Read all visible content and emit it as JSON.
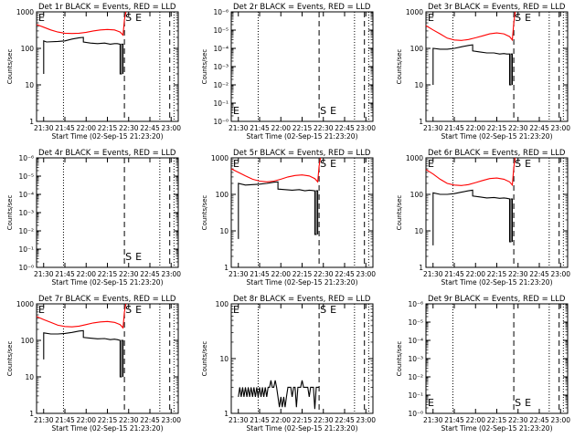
{
  "figure": {
    "x_title": "Start Time (02-Sep-15 21:23:20)",
    "y_title": "Counts/sec"
  },
  "colors": {
    "events": "#000000",
    "lld": "#ff0000",
    "axis": "#000000"
  },
  "x_ticks": [
    "21:30",
    "21:45",
    "22:00",
    "22:15",
    "22:30",
    "22:45",
    "23:00"
  ],
  "marker_labels": {
    "start": "S",
    "end": "E"
  },
  "chart_data": [
    {
      "type": "line",
      "title": "Det 1r BLACK = Events, RED = LLD",
      "y_scale": "log",
      "ylim": [
        1,
        1000
      ],
      "y_ticks": [
        "1",
        "10",
        "100",
        "1000"
      ],
      "xlim_min": [
        -5,
        95
      ],
      "markers": {
        "dotted": [
          14,
          82,
          92
        ],
        "dashed": [
          57,
          89
        ]
      },
      "edge_labels": {
        "left": "E",
        "start": "S",
        "end": "E"
      },
      "series": [
        {
          "name": "LLD",
          "color": "#ff0000",
          "x": [
            -5,
            0,
            5,
            10,
            15,
            20,
            25,
            30,
            35,
            40,
            45,
            50,
            54,
            56,
            57,
            58
          ],
          "y": [
            450,
            380,
            320,
            280,
            260,
            255,
            260,
            275,
            300,
            320,
            330,
            320,
            280,
            230,
            600,
            1000
          ]
        },
        {
          "name": "Events",
          "color": "#000000",
          "x": [
            0,
            0,
            2,
            10,
            15,
            20,
            25,
            28,
            28,
            33,
            38,
            43,
            47,
            50,
            52,
            54,
            54,
            55,
            55,
            56,
            56
          ],
          "y": [
            20,
            160,
            150,
            155,
            160,
            180,
            195,
            200,
            150,
            140,
            135,
            140,
            130,
            135,
            135,
            130,
            20,
            20,
            130,
            130,
            20
          ]
        }
      ]
    },
    {
      "type": "line",
      "title": "Det 2r BLACK = Events, RED = LLD",
      "y_scale": "log",
      "ylim": [
        1e-06,
        1
      ],
      "y_ticks": [
        "10⁻⁰",
        "10⁻¹",
        "10⁻²",
        "10⁻³",
        "10⁻⁴",
        "10⁻⁵",
        "10⁻⁶"
      ],
      "xlim_min": [
        -5,
        95
      ],
      "markers": {
        "dotted": [
          14,
          82,
          92
        ],
        "dashed": [
          57,
          89
        ]
      },
      "edge_labels": {
        "left": "E",
        "start": "S",
        "end": "E"
      },
      "series": []
    },
    {
      "type": "line",
      "title": "Det 3r BLACK = Events, RED = LLD",
      "y_scale": "log",
      "ylim": [
        1,
        1000
      ],
      "y_ticks": [
        "1",
        "10",
        "100",
        "1000"
      ],
      "xlim_min": [
        -5,
        95
      ],
      "markers": {
        "dotted": [
          14,
          82,
          92
        ],
        "dashed": [
          57,
          89
        ]
      },
      "edge_labels": {
        "left": "E",
        "start": "S",
        "end": "E"
      },
      "series": [
        {
          "name": "LLD",
          "color": "#ff0000",
          "x": [
            -5,
            0,
            5,
            10,
            15,
            20,
            25,
            30,
            35,
            40,
            45,
            50,
            54,
            56,
            57,
            58
          ],
          "y": [
            420,
            320,
            250,
            190,
            170,
            165,
            175,
            195,
            220,
            250,
            265,
            250,
            210,
            170,
            500,
            1000
          ]
        },
        {
          "name": "Events",
          "color": "#000000",
          "x": [
            0,
            0,
            5,
            10,
            15,
            20,
            25,
            28,
            28,
            33,
            38,
            43,
            47,
            50,
            52,
            54,
            54,
            55,
            55,
            56,
            56
          ],
          "y": [
            10,
            100,
            95,
            95,
            100,
            110,
            120,
            125,
            85,
            80,
            75,
            75,
            70,
            72,
            70,
            70,
            10,
            10,
            70,
            70,
            10
          ]
        }
      ]
    },
    {
      "type": "line",
      "title": "Det 4r BLACK = Events, RED = LLD",
      "y_scale": "log",
      "ylim": [
        1e-06,
        1
      ],
      "y_ticks": [
        "10⁻⁰",
        "10⁻¹",
        "10⁻²",
        "10⁻³",
        "10⁻⁴",
        "10⁻⁵",
        "10⁻⁶"
      ],
      "xlim_min": [
        -5,
        95
      ],
      "markers": {
        "dotted": [
          14,
          82,
          92
        ],
        "dashed": [
          57,
          89
        ]
      },
      "edge_labels": {
        "left": "",
        "start": "S",
        "end": "E"
      },
      "series": []
    },
    {
      "type": "line",
      "title": "Det 5r BLACK = Events, RED = LLD",
      "y_scale": "log",
      "ylim": [
        1,
        1000
      ],
      "y_ticks": [
        "1",
        "10",
        "100",
        "1000"
      ],
      "xlim_min": [
        -5,
        95
      ],
      "markers": {
        "dotted": [
          14,
          82,
          92
        ],
        "dashed": [
          57,
          89
        ]
      },
      "edge_labels": {
        "left": "E",
        "start": "S",
        "end": "E"
      },
      "series": [
        {
          "name": "LLD",
          "color": "#ff0000",
          "x": [
            -5,
            0,
            5,
            10,
            15,
            20,
            25,
            30,
            35,
            40,
            45,
            50,
            54,
            56,
            57,
            58
          ],
          "y": [
            500,
            400,
            320,
            260,
            230,
            220,
            230,
            260,
            300,
            330,
            340,
            320,
            270,
            220,
            600,
            1000
          ]
        },
        {
          "name": "Events",
          "color": "#000000",
          "x": [
            0,
            0,
            5,
            10,
            15,
            20,
            25,
            28,
            28,
            33,
            38,
            43,
            47,
            50,
            52,
            54,
            54,
            55,
            55,
            56,
            56
          ],
          "y": [
            6,
            200,
            180,
            185,
            190,
            200,
            215,
            220,
            140,
            135,
            130,
            135,
            125,
            130,
            128,
            125,
            8,
            8,
            125,
            125,
            8
          ]
        }
      ]
    },
    {
      "type": "line",
      "title": "Det 6r BLACK = Events, RED = LLD",
      "y_scale": "log",
      "ylim": [
        1,
        1000
      ],
      "y_ticks": [
        "1",
        "10",
        "100",
        "1000"
      ],
      "xlim_min": [
        -5,
        95
      ],
      "markers": {
        "dotted": [
          14,
          82,
          92
        ],
        "dashed": [
          57,
          89
        ]
      },
      "edge_labels": {
        "left": "E",
        "start": "S",
        "end": "E"
      },
      "series": [
        {
          "name": "LLD",
          "color": "#ff0000",
          "x": [
            -5,
            0,
            5,
            10,
            15,
            20,
            25,
            30,
            35,
            40,
            45,
            50,
            54,
            56,
            57,
            58
          ],
          "y": [
            480,
            360,
            260,
            200,
            180,
            175,
            185,
            210,
            240,
            270,
            280,
            260,
            220,
            180,
            550,
            1000
          ]
        },
        {
          "name": "Events",
          "color": "#000000",
          "x": [
            0,
            0,
            5,
            10,
            15,
            20,
            25,
            28,
            28,
            33,
            38,
            43,
            47,
            50,
            52,
            54,
            54,
            55,
            55,
            56,
            56
          ],
          "y": [
            4,
            110,
            100,
            100,
            105,
            115,
            125,
            130,
            90,
            85,
            80,
            82,
            78,
            80,
            78,
            75,
            5,
            5,
            75,
            75,
            5
          ]
        }
      ]
    },
    {
      "type": "line",
      "title": "Det 7r BLACK = Events, RED = LLD",
      "y_scale": "log",
      "ylim": [
        1,
        1000
      ],
      "y_ticks": [
        "1",
        "10",
        "100",
        "1000"
      ],
      "xlim_min": [
        -5,
        95
      ],
      "markers": {
        "dotted": [
          14,
          82,
          92
        ],
        "dashed": [
          57,
          89
        ]
      },
      "edge_labels": {
        "left": "E",
        "start": "S",
        "end": "E"
      },
      "series": [
        {
          "name": "LLD",
          "color": "#ff0000",
          "x": [
            -5,
            0,
            5,
            10,
            15,
            20,
            25,
            30,
            35,
            40,
            45,
            50,
            54,
            56,
            57,
            58
          ],
          "y": [
            450,
            370,
            310,
            260,
            240,
            235,
            245,
            270,
            300,
            320,
            330,
            310,
            270,
            220,
            600,
            1000
          ]
        },
        {
          "name": "Events",
          "color": "#000000",
          "x": [
            0,
            0,
            5,
            10,
            15,
            20,
            25,
            28,
            28,
            33,
            38,
            43,
            47,
            50,
            52,
            54,
            54,
            55,
            55,
            56,
            56
          ],
          "y": [
            30,
            160,
            150,
            150,
            155,
            165,
            180,
            185,
            120,
            115,
            110,
            112,
            105,
            108,
            105,
            100,
            10,
            10,
            100,
            100,
            10
          ]
        }
      ]
    },
    {
      "type": "line",
      "title": "Det 8r BLACK = Events, RED = LLD",
      "y_scale": "log",
      "ylim": [
        1,
        100
      ],
      "y_ticks": [
        "1",
        "10",
        "100"
      ],
      "xlim_min": [
        -5,
        95
      ],
      "markers": {
        "dotted": [
          14,
          82,
          92
        ],
        "dashed": [
          57,
          89
        ]
      },
      "edge_labels": {
        "left": "E",
        "start": "S",
        "end": "E"
      },
      "series": [
        {
          "name": "Events",
          "color": "#000000",
          "x": [
            0,
            1,
            2,
            3,
            4,
            5,
            6,
            7,
            8,
            9,
            10,
            11,
            12,
            13,
            14,
            15,
            16,
            17,
            18,
            19,
            20,
            21,
            22,
            23,
            24,
            25,
            26,
            27,
            28,
            29,
            30,
            31,
            32,
            33,
            34,
            35,
            36,
            37,
            38,
            39,
            40,
            41,
            42,
            43,
            44,
            45,
            46,
            47,
            48,
            49,
            50,
            51,
            52,
            53,
            54,
            55,
            56,
            57
          ],
          "y": [
            2,
            3,
            2,
            3,
            2,
            3,
            2,
            3,
            2,
            3,
            2,
            3,
            2,
            3,
            2,
            3,
            2,
            3,
            2,
            3,
            2,
            3,
            3,
            4,
            3,
            3,
            4,
            3,
            2,
            1.3,
            2,
            1.3,
            2,
            1.3,
            2,
            3,
            3,
            3,
            2,
            3,
            3,
            1.3,
            3,
            3,
            3,
            4,
            3,
            3,
            3,
            3,
            2,
            3,
            3,
            3,
            1.2,
            3,
            3,
            3
          ]
        }
      ]
    },
    {
      "type": "line",
      "title": "Det 9r BLACK = Events, RED = LLD",
      "y_scale": "log",
      "ylim": [
        1e-06,
        1
      ],
      "y_ticks": [
        "10⁻⁰",
        "10⁻¹",
        "10⁻²",
        "10⁻³",
        "10⁻⁴",
        "10⁻⁵",
        "10⁻⁶"
      ],
      "xlim_min": [
        -5,
        95
      ],
      "markers": {
        "dotted": [
          14,
          82,
          92
        ],
        "dashed": [
          57,
          89
        ]
      },
      "edge_labels": {
        "left": "E",
        "start": "S",
        "end": "E"
      },
      "series": []
    }
  ]
}
